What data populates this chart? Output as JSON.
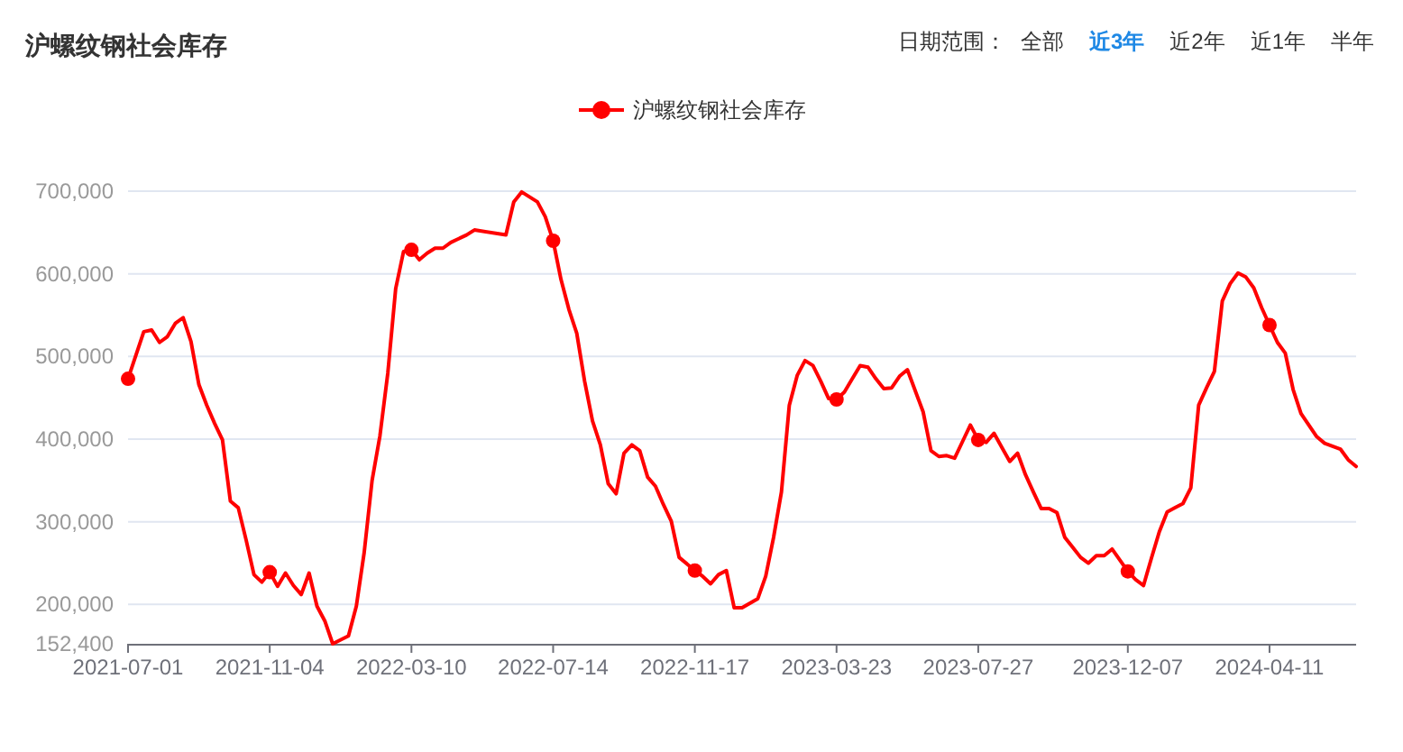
{
  "chart_data": {
    "type": "line",
    "title": "沪螺纹钢社会库存",
    "annotations": [
      "日期范围：",
      "全部",
      "近3年",
      "近2年",
      "近1年",
      "半年"
    ],
    "legend": "top",
    "line_style": "solid",
    "grid": "y",
    "xlim": [
      "2021-07-01",
      "2024-06-27"
    ],
    "xticks": [
      "2021-07-01",
      "2021-11-04",
      "2022-03-10",
      "2022-07-14",
      "2022-11-17",
      "2023-03-23",
      "2023-07-27",
      "2023-12-07",
      "2024-04-11"
    ],
    "ylim": [
      152400,
      700000
    ],
    "yticks": [
      {
        "value": 152400,
        "label": "152,400"
      },
      {
        "value": 200000,
        "label": "200,000"
      },
      {
        "value": 300000,
        "label": "300,000"
      },
      {
        "value": 400000,
        "label": "400,000"
      },
      {
        "value": 500000,
        "label": "500,000"
      },
      {
        "value": 600000,
        "label": "600,000"
      },
      {
        "value": 700000,
        "label": "700,000"
      }
    ],
    "x": [
      "2021-07-01",
      "2021-07-15",
      "2021-07-22",
      "2021-07-29",
      "2021-08-05",
      "2021-08-12",
      "2021-08-19",
      "2021-08-26",
      "2021-09-02",
      "2021-09-09",
      "2021-09-16",
      "2021-09-23",
      "2021-09-30",
      "2021-10-07",
      "2021-10-14",
      "2021-10-21",
      "2021-10-28",
      "2021-11-04",
      "2021-11-11",
      "2021-11-18",
      "2021-11-25",
      "2021-12-02",
      "2021-12-09",
      "2021-12-16",
      "2021-12-23",
      "2021-12-30",
      "2022-01-13",
      "2022-01-20",
      "2022-01-27",
      "2022-02-03",
      "2022-02-10",
      "2022-02-17",
      "2022-02-24",
      "2022-03-03",
      "2022-03-10",
      "2022-03-17",
      "2022-03-24",
      "2022-03-31",
      "2022-04-07",
      "2022-04-14",
      "2022-04-28",
      "2022-05-05",
      "2022-06-02",
      "2022-06-09",
      "2022-06-16",
      "2022-06-30",
      "2022-07-07",
      "2022-07-14",
      "2022-07-21",
      "2022-07-28",
      "2022-08-04",
      "2022-08-11",
      "2022-08-18",
      "2022-08-25",
      "2022-09-01",
      "2022-09-08",
      "2022-09-15",
      "2022-09-22",
      "2022-09-29",
      "2022-10-06",
      "2022-10-13",
      "2022-10-20",
      "2022-10-27",
      "2022-11-03",
      "2022-11-17",
      "2022-11-24",
      "2022-12-01",
      "2022-12-08",
      "2022-12-15",
      "2022-12-22",
      "2022-12-29",
      "2023-01-12",
      "2023-01-19",
      "2023-01-26",
      "2023-02-02",
      "2023-02-09",
      "2023-02-16",
      "2023-02-23",
      "2023-03-02",
      "2023-03-09",
      "2023-03-16",
      "2023-03-23",
      "2023-03-30",
      "2023-04-06",
      "2023-04-13",
      "2023-04-20",
      "2023-04-27",
      "2023-05-04",
      "2023-05-11",
      "2023-05-18",
      "2023-05-25",
      "2023-06-08",
      "2023-06-15",
      "2023-06-22",
      "2023-06-29",
      "2023-07-06",
      "2023-07-13",
      "2023-07-20",
      "2023-07-27",
      "2023-08-03",
      "2023-08-10",
      "2023-08-17",
      "2023-08-24",
      "2023-08-31",
      "2023-09-07",
      "2023-09-14",
      "2023-09-21",
      "2023-09-28",
      "2023-10-05",
      "2023-10-12",
      "2023-10-19",
      "2023-10-26",
      "2023-11-02",
      "2023-11-09",
      "2023-11-16",
      "2023-11-23",
      "2023-12-07",
      "2023-12-14",
      "2023-12-21",
      "2023-12-28",
      "2024-01-04",
      "2024-01-11",
      "2024-01-18",
      "2024-01-25",
      "2024-02-01",
      "2024-02-08",
      "2024-02-15",
      "2024-02-22",
      "2024-02-29",
      "2024-03-07",
      "2024-03-14",
      "2024-03-21",
      "2024-03-28",
      "2024-04-04",
      "2024-04-11",
      "2024-04-18",
      "2024-04-25",
      "2024-05-02",
      "2024-05-09",
      "2024-05-23",
      "2024-05-30",
      "2024-06-13",
      "2024-06-20",
      "2024-06-27"
    ],
    "series": [
      {
        "name": "沪螺纹钢社会库存",
        "color": "#ff0000",
        "values": [
          473000,
          530000,
          532000,
          517000,
          524000,
          540000,
          547000,
          518000,
          466000,
          441000,
          419000,
          399000,
          325000,
          317000,
          278000,
          236000,
          227000,
          239000,
          222000,
          238000,
          223000,
          212000,
          238000,
          198000,
          180000,
          152400,
          162000,
          198000,
          263000,
          350000,
          404000,
          480000,
          582000,
          627000,
          629000,
          617000,
          625000,
          631000,
          631000,
          638000,
          647000,
          653000,
          647000,
          687000,
          699000,
          687000,
          669000,
          640000,
          593000,
          557000,
          528000,
          470000,
          422000,
          393000,
          346000,
          334000,
          383000,
          393000,
          386000,
          354000,
          343000,
          321000,
          301000,
          257000,
          241000,
          234000,
          225000,
          236000,
          241000,
          196000,
          196000,
          207000,
          234000,
          281000,
          336000,
          441000,
          477000,
          495000,
          489000,
          470000,
          449000,
          448000,
          457000,
          473000,
          489000,
          487000,
          473000,
          461000,
          462000,
          476000,
          484000,
          433000,
          386000,
          379000,
          380000,
          377000,
          397000,
          417000,
          399000,
          396000,
          407000,
          390000,
          373000,
          383000,
          357000,
          336000,
          316000,
          316000,
          311000,
          281000,
          269000,
          257000,
          250000,
          259000,
          259000,
          267000,
          240000,
          230000,
          223000,
          256000,
          288000,
          312000,
          317000,
          322000,
          341000,
          441000,
          462000,
          482000,
          567000,
          588000,
          601000,
          596000,
          583000,
          559000,
          538000,
          517000,
          504000,
          460000,
          431000,
          403000,
          395000,
          388000,
          375000,
          367000
        ]
      },
      {
        "type": "scatter",
        "color": "#ff0000",
        "x": [
          "2021-07-01",
          "2021-11-04",
          "2022-03-10",
          "2022-07-14",
          "2022-11-17",
          "2023-03-23",
          "2023-07-27",
          "2023-12-07",
          "2024-04-11"
        ],
        "values": [
          473000,
          239000,
          629000,
          640000,
          241000,
          448000,
          399000,
          240000,
          538000
        ]
      }
    ]
  }
}
